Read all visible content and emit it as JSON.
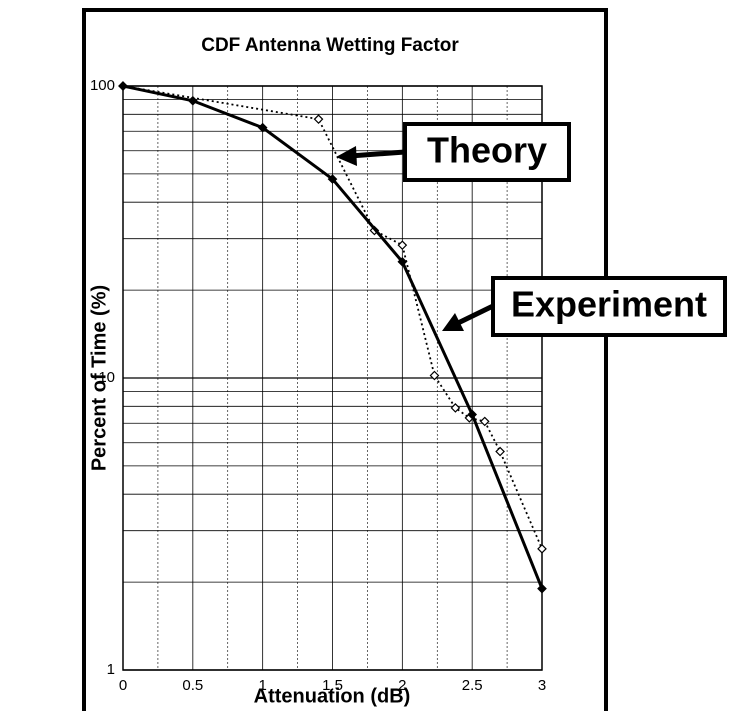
{
  "chart_data": {
    "type": "line",
    "title": "CDF Antenna Wetting Factor",
    "xlabel": "Attenuation (dB)",
    "ylabel": "Percent of Time (%)",
    "log_y": true,
    "grid": true,
    "xlim": [
      0,
      3
    ],
    "xticks": [
      0,
      0.5,
      1,
      1.5,
      2,
      2.5,
      3
    ],
    "xminorticks": [
      0.25,
      0.75,
      1.25,
      1.75,
      2.25,
      2.75
    ],
    "ylim": [
      1,
      100
    ],
    "yticks": [
      1,
      10,
      100
    ],
    "yminorticks": [
      2,
      3,
      4,
      5,
      6,
      7,
      8,
      9,
      20,
      30,
      40,
      50,
      60,
      70,
      80,
      90
    ],
    "series": [
      {
        "name": "Theory",
        "color": "#000000",
        "style": "dotted",
        "marker": "open-diamond",
        "x": [
          0,
          1.4,
          1.8,
          2.0,
          2.23,
          2.38,
          2.48,
          2.59,
          2.7,
          3.0
        ],
        "values": [
          100,
          77,
          32,
          28.5,
          10.2,
          7.9,
          7.3,
          7.1,
          5.6,
          2.6
        ]
      },
      {
        "name": "Experiment",
        "color": "#000000",
        "style": "solid",
        "marker": "filled-diamond",
        "x": [
          0,
          0.5,
          1,
          1.5,
          2,
          2.5,
          3
        ],
        "values": [
          100,
          89,
          72,
          48,
          25,
          7.5,
          1.9
        ]
      }
    ]
  }
}
